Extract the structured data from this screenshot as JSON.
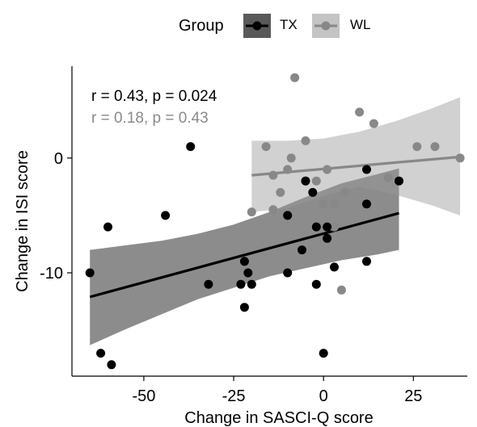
{
  "chart_data": {
    "type": "scatter",
    "xlabel": "Change in SASCI-Q score",
    "ylabel": "Change in ISI score",
    "xlim": [
      -70,
      40
    ],
    "ylim": [
      -19,
      8
    ],
    "x_ticks": [
      -50,
      -25,
      0,
      25
    ],
    "x_tick_labels": [
      "-50",
      "-25",
      "0",
      "25"
    ],
    "y_ticks": [
      -10,
      0
    ],
    "y_tick_labels": [
      "-10",
      "0"
    ],
    "grid": false,
    "legend": {
      "title": "Group",
      "position": "top",
      "entries": [
        "TX",
        "WL"
      ]
    },
    "annotations": [
      {
        "text": "r = 0.43, p = 0.024",
        "series": "TX"
      },
      {
        "text": "r = 0.18, p = 0.43",
        "series": "WL"
      }
    ],
    "series": [
      {
        "name": "TX",
        "color": "#000000",
        "fit": {
          "x": [
            -65,
            21
          ],
          "y": [
            -12.1,
            -4.8
          ]
        },
        "band": {
          "x": [
            -65,
            -55,
            -45,
            -35,
            -25,
            -15,
            -5,
            5,
            15,
            21
          ],
          "upper": [
            -8.0,
            -7.6,
            -7.2,
            -6.6,
            -5.8,
            -4.7,
            -3.4,
            -2.2,
            -1.4,
            -0.9
          ],
          "lower": [
            -16.3,
            -14.9,
            -13.6,
            -12.3,
            -11.3,
            -10.3,
            -9.6,
            -8.9,
            -8.4,
            -8.0
          ]
        },
        "points": [
          [
            -65,
            -10
          ],
          [
            -62,
            -17
          ],
          [
            -60,
            -6
          ],
          [
            -59,
            -18
          ],
          [
            -44,
            -5
          ],
          [
            -37,
            1
          ],
          [
            -32,
            -11
          ],
          [
            -23,
            -11
          ],
          [
            -22,
            -9
          ],
          [
            -22,
            -13
          ],
          [
            -21,
            -10
          ],
          [
            -20,
            -11
          ],
          [
            -10,
            -10
          ],
          [
            -10,
            -5
          ],
          [
            -6,
            -8
          ],
          [
            -5,
            -2
          ],
          [
            -3,
            -3
          ],
          [
            -2,
            -6
          ],
          [
            -2,
            -11
          ],
          [
            0,
            -17
          ],
          [
            1,
            -6
          ],
          [
            1,
            -7
          ],
          [
            3,
            -9.5
          ],
          [
            12,
            -9
          ],
          [
            12,
            -4
          ],
          [
            12,
            -1
          ],
          [
            21,
            -2
          ]
        ]
      },
      {
        "name": "WL",
        "color": "#888888",
        "fit": {
          "x": [
            -20,
            38
          ],
          "y": [
            -1.5,
            0.1
          ]
        },
        "band": {
          "x": [
            -20,
            -10,
            0,
            10,
            20,
            30,
            38
          ],
          "upper": [
            1.5,
            1.5,
            1.7,
            2.3,
            3.2,
            4.3,
            5.3
          ],
          "lower": [
            -4.7,
            -4.4,
            -3.3,
            -2.5,
            -3.2,
            -4.1,
            -5.0
          ]
        },
        "points": [
          [
            -20,
            -4.7
          ],
          [
            -16,
            1
          ],
          [
            -14,
            -1.5
          ],
          [
            -14,
            -4.5
          ],
          [
            -12,
            -3
          ],
          [
            -10,
            -1
          ],
          [
            -9,
            0
          ],
          [
            -8,
            7
          ],
          [
            -5,
            1.5
          ],
          [
            -5,
            -2
          ],
          [
            -2,
            -2
          ],
          [
            0,
            -4
          ],
          [
            1,
            -1
          ],
          [
            3,
            -6
          ],
          [
            3,
            -4
          ],
          [
            5,
            -11.5
          ],
          [
            6,
            -3
          ],
          [
            10,
            4
          ],
          [
            14,
            3
          ],
          [
            18,
            -1.7
          ],
          [
            26,
            1
          ],
          [
            31,
            1
          ],
          [
            38,
            0
          ]
        ]
      }
    ]
  }
}
